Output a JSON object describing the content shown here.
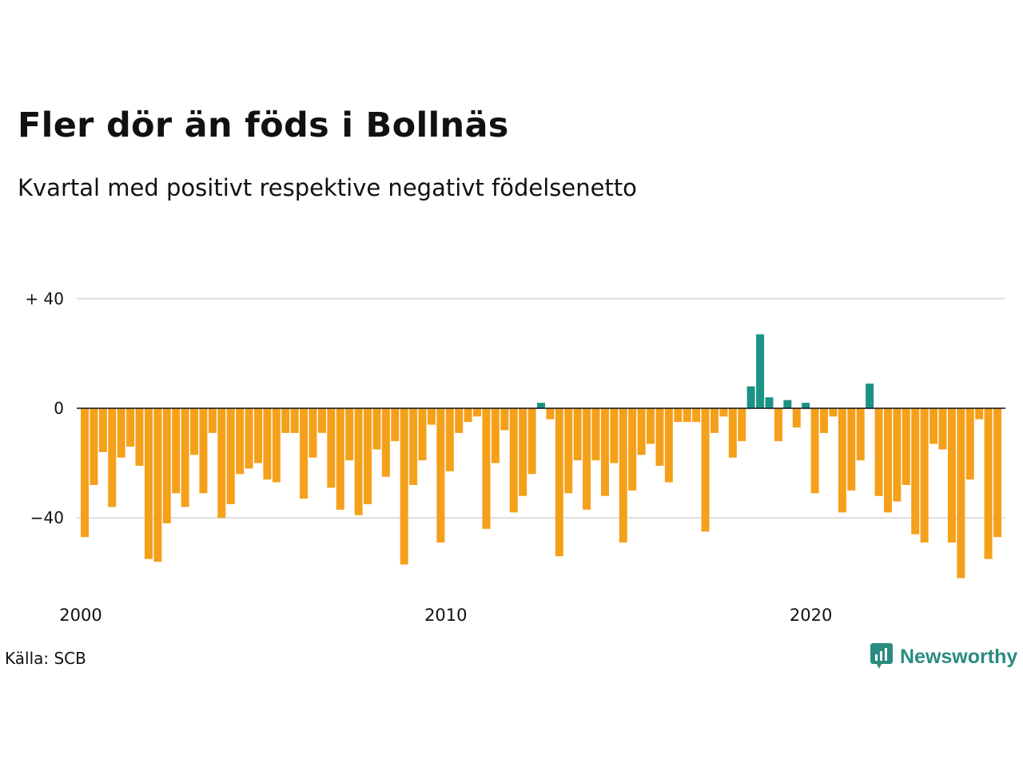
{
  "title": "Fler dör än föds i Bollnäs",
  "subtitle": "Kvartal med positivt respektive negativt födelsenetto",
  "source": "Källa: SCB",
  "brand": "Newsworthy",
  "colors": {
    "negative": "#f5a01a",
    "positive": "#1a9385",
    "brand": "#2a8c80",
    "grid": "#dddddd",
    "zero": "#111111"
  },
  "chart_data": {
    "type": "bar",
    "x_ticks": [
      "2000",
      "2010",
      "2020"
    ],
    "y_ticks": [
      {
        "value": 40,
        "label": "+ 40"
      },
      {
        "value": 0,
        "label": "0"
      },
      {
        "value": -40,
        "label": "−40"
      }
    ],
    "ylim": [
      -65,
      45
    ],
    "grid": true,
    "values": [
      -47,
      -28,
      -16,
      -36,
      -18,
      -14,
      -21,
      -55,
      -56,
      -42,
      -31,
      -36,
      -17,
      -31,
      -9,
      -40,
      -35,
      -24,
      -22,
      -20,
      -26,
      -27,
      -9,
      -9,
      -33,
      -18,
      -9,
      -29,
      -37,
      -19,
      -39,
      -35,
      -15,
      -25,
      -12,
      -57,
      -28,
      -19,
      -6,
      -49,
      -23,
      -9,
      -5,
      -3,
      -44,
      -20,
      -8,
      -38,
      -32,
      -24,
      2,
      -4,
      -54,
      -31,
      -19,
      -37,
      -19,
      -32,
      -20,
      -49,
      -30,
      -17,
      -13,
      -21,
      -27,
      -5,
      -5,
      -5,
      -45,
      -9,
      -3,
      -18,
      -12,
      8,
      27,
      4,
      -12,
      3,
      -7,
      2,
      -31,
      -9,
      -3,
      -38,
      -30,
      -19,
      9,
      -32,
      -38,
      -34,
      -28,
      -46,
      -49,
      -13,
      -15,
      -49,
      -62,
      -26,
      -4,
      -55,
      -47
    ]
  }
}
